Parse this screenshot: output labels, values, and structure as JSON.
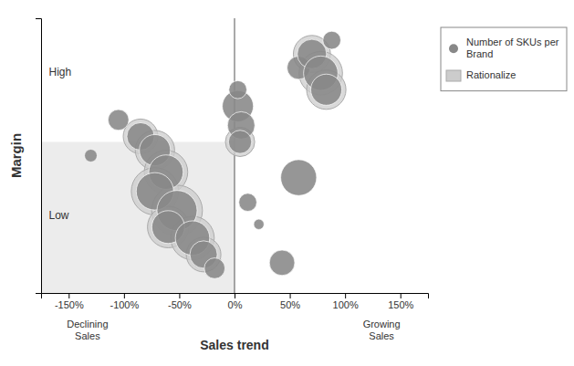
{
  "chart_data": {
    "type": "scatter",
    "xlabel": "Sales trend",
    "ylabel": "Margin",
    "xlim": [
      -175,
      175
    ],
    "ylim": [
      0,
      100
    ],
    "xticks": [
      {
        "value": -150,
        "label": "-150%"
      },
      {
        "value": -100,
        "label": "-100%"
      },
      {
        "value": -50,
        "label": "-50%"
      },
      {
        "value": 0,
        "label": "0%"
      },
      {
        "value": 50,
        "label": "50%"
      },
      {
        "value": 100,
        "label": "100%"
      },
      {
        "value": 150,
        "label": "150%"
      }
    ],
    "tick_labels": "x",
    "shaded_region": {
      "xlim": [
        -175,
        0
      ],
      "ylim": [
        0,
        55
      ],
      "color": "#dddddd"
    },
    "reference_lines": [
      {
        "x": 0
      }
    ],
    "series": [
      {
        "name": "Number of SKUs per\nBrand",
        "color": "#888888",
        "x": [
          -105,
          -85,
          -72,
          -62,
          -72,
          -52,
          -60,
          -38,
          -28,
          -18,
          -130,
          3,
          6,
          5,
          3,
          58,
          70,
          78,
          83,
          88,
          58,
          12,
          22,
          43
        ],
        "values": [
          63,
          57,
          52,
          44,
          37,
          30,
          24,
          20,
          14,
          9,
          50,
          68,
          61,
          55,
          74,
          82,
          87,
          80,
          74,
          92,
          42,
          33,
          25,
          11
        ],
        "sizes": [
          400,
          700,
          900,
          1100,
          1300,
          1500,
          1000,
          1100,
          700,
          400,
          150,
          900,
          700,
          500,
          300,
          500,
          800,
          1100,
          900,
          300,
          1200,
          300,
          100,
          600
        ]
      },
      {
        "name": "Rationalize",
        "color": "#cccccc",
        "x": [
          -85,
          -72,
          -62,
          -72,
          -52,
          -60,
          -38,
          -28,
          5,
          70,
          78,
          83
        ],
        "values": [
          57,
          52,
          44,
          37,
          30,
          24,
          20,
          14,
          55,
          87,
          80,
          74
        ],
        "sizes": [
          700,
          900,
          1100,
          1300,
          1500,
          1000,
          1100,
          700,
          500,
          800,
          1100,
          900
        ]
      }
    ],
    "annotations": [
      {
        "text": "High",
        "x": -168,
        "y": 80
      },
      {
        "text": "Low",
        "x": -168,
        "y": 28
      },
      {
        "text": "Declining\nSales",
        "position": "bottom-left"
      },
      {
        "text": "Growing\nSales",
        "position": "bottom-right"
      }
    ]
  }
}
